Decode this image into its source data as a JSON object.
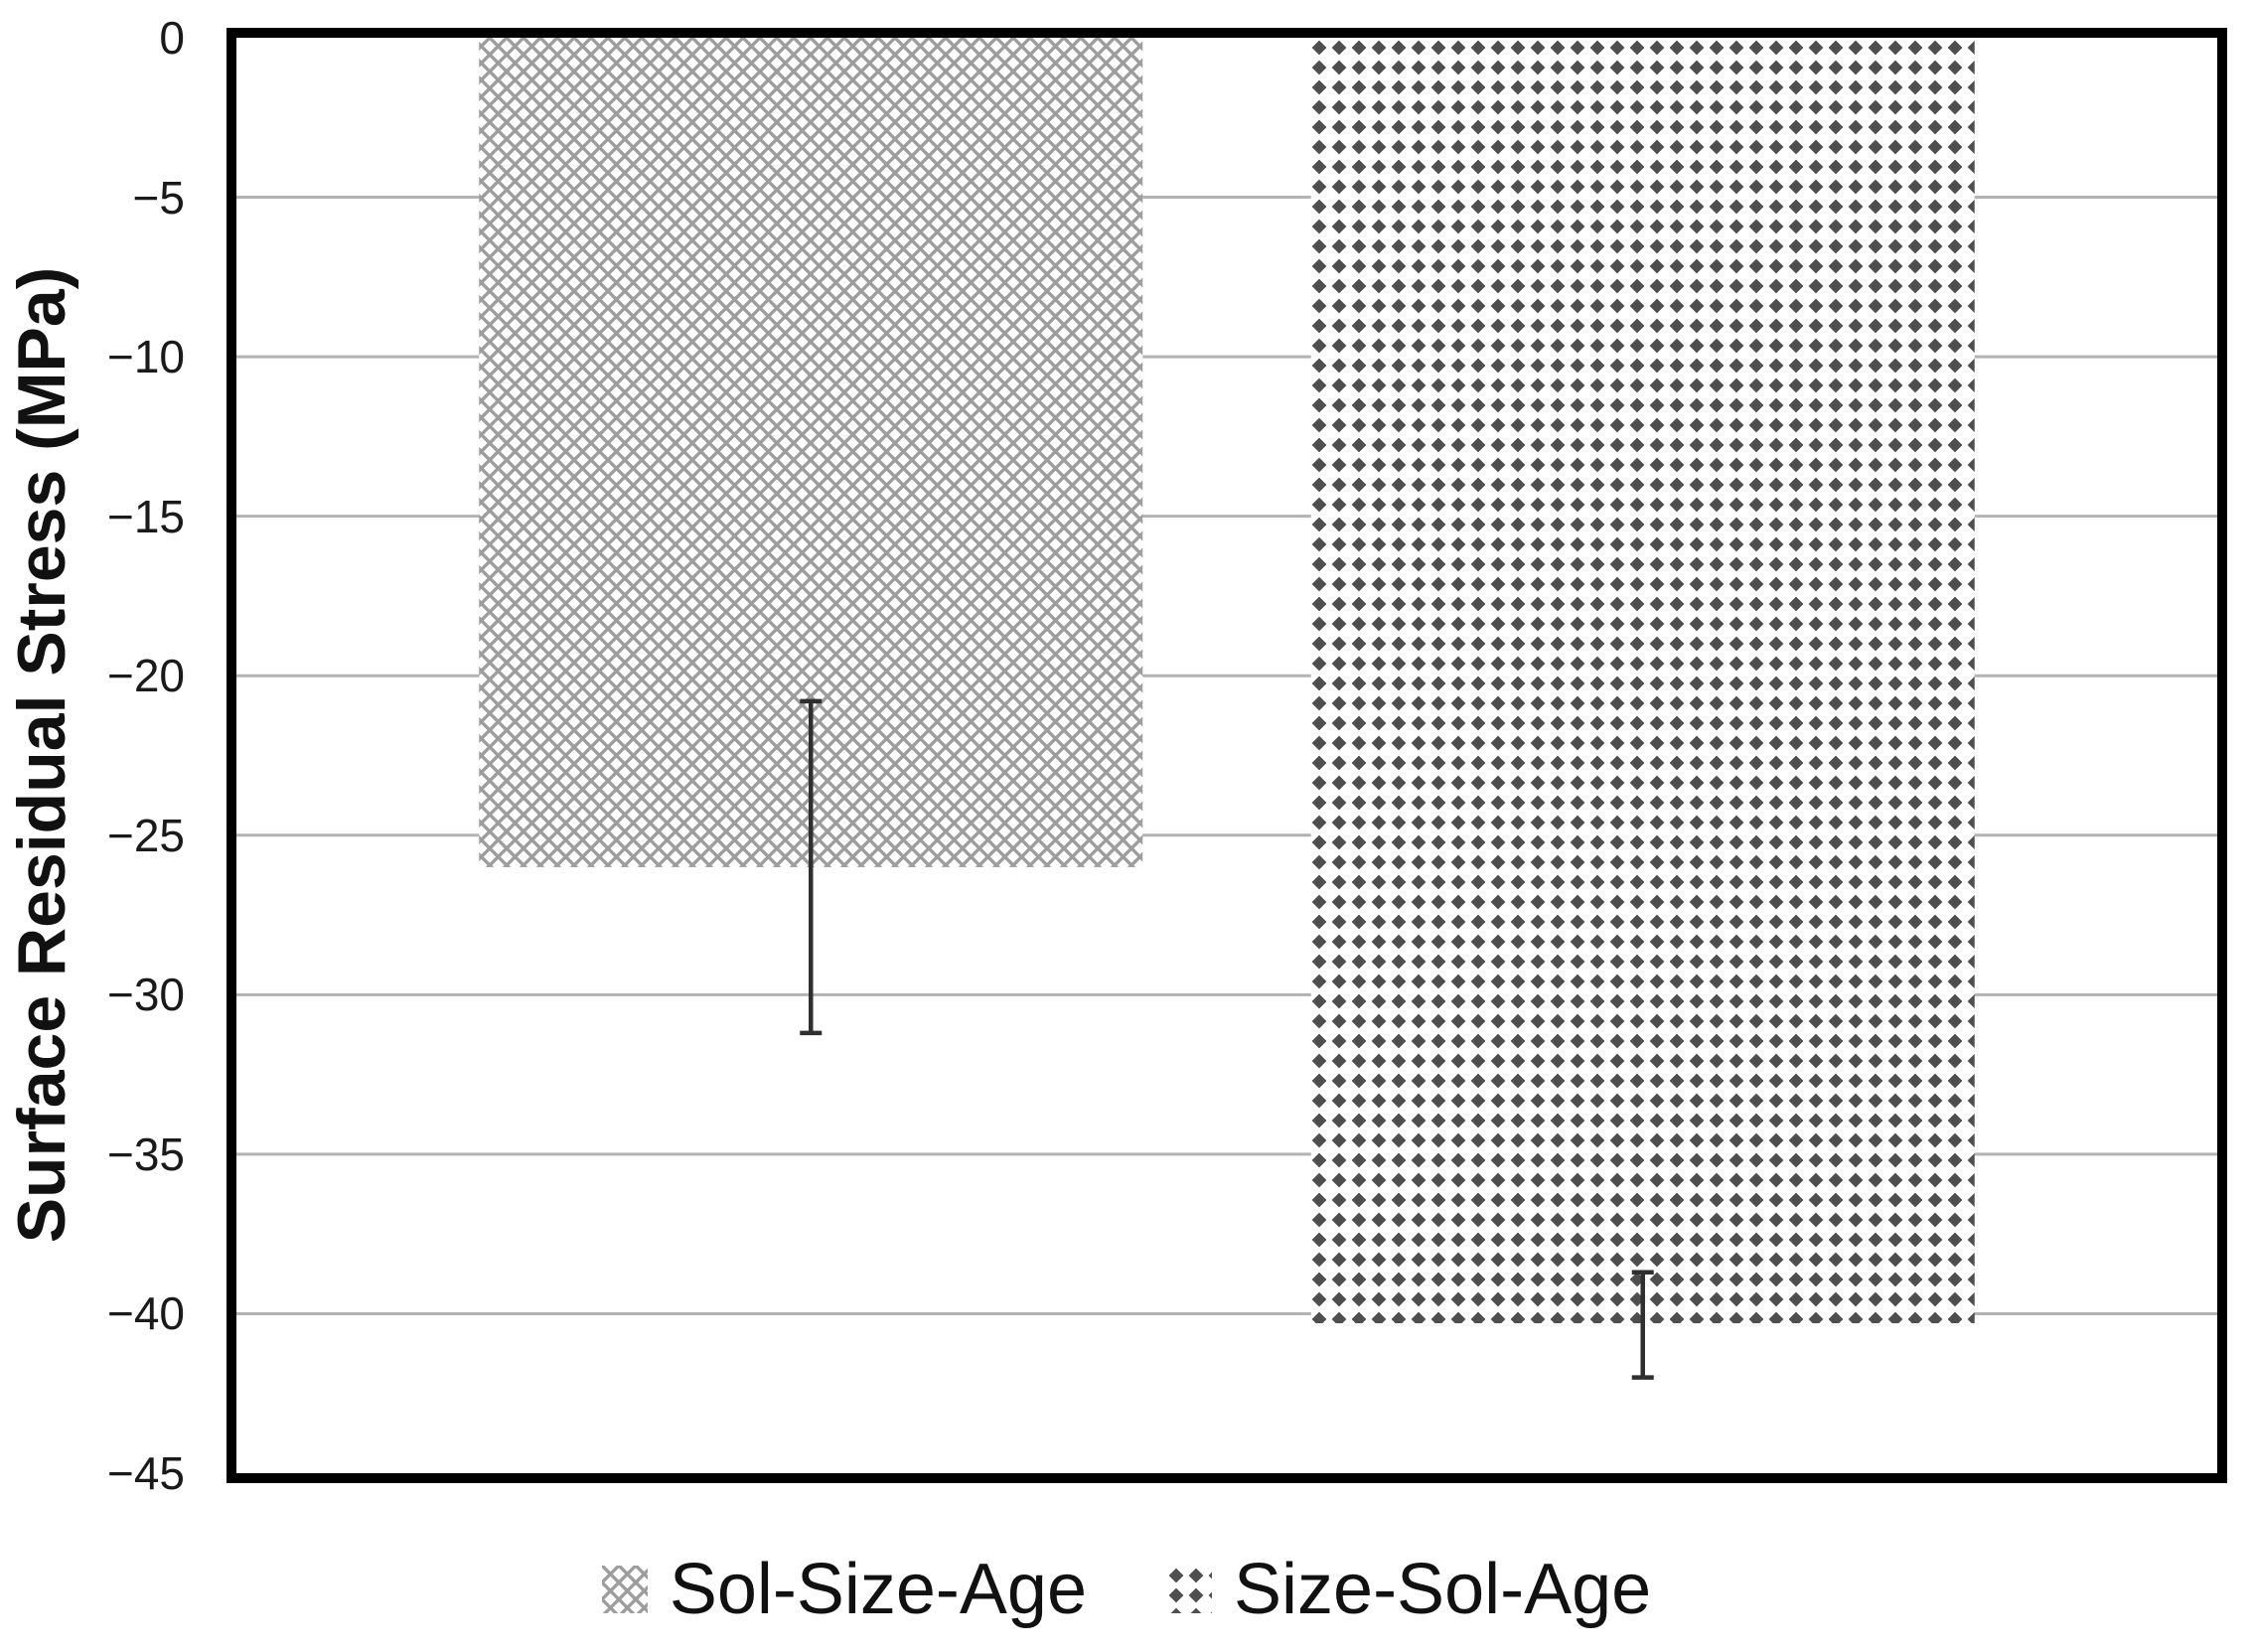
{
  "chart_data": {
    "type": "bar",
    "title": "",
    "xlabel": "",
    "ylabel": "Surface Residual Stress (MPa)",
    "ylim": [
      0,
      -45
    ],
    "yticks": [
      "0",
      "−5",
      "−10",
      "−15",
      "−20",
      "−25",
      "−30",
      "−35",
      "−40",
      "−45"
    ],
    "ytick_values": [
      0,
      -5,
      -10,
      -15,
      -20,
      -25,
      -30,
      -35,
      -40,
      -45
    ],
    "grid": true,
    "gridline_color": "#b3b3b3",
    "axis_color": "#000000",
    "error_bar_color": "#2f2f2f",
    "legend_position": "bottom",
    "categories": [
      "Sol-Size-Age",
      "Size-Sol-Age"
    ],
    "series": [
      {
        "name": "Sol-Size-Age",
        "value": -26.0,
        "error": {
          "upper": -20.8,
          "lower": -31.2
        },
        "pattern": "diagonal-crosshatch",
        "color": "#9d9d9d"
      },
      {
        "name": "Size-Sol-Age",
        "value": -40.3,
        "error": {
          "upper": -38.7,
          "lower": -42.0
        },
        "pattern": "diamond-dots",
        "color": "#4e4e4e"
      }
    ]
  }
}
